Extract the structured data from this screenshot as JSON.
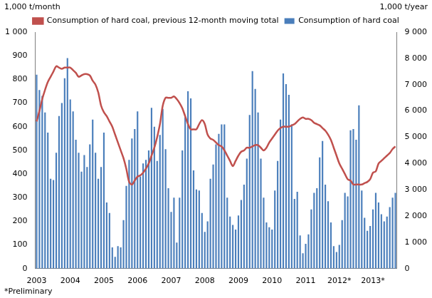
{
  "chart_data": {
    "type": "bar",
    "ylabel": "1,000 t/month",
    "y2label": "1,000 t/year",
    "annotations": [
      "*Preliminary"
    ],
    "categories": [
      "2003",
      null,
      null,
      null,
      null,
      null,
      null,
      null,
      null,
      null,
      null,
      null,
      "2004",
      null,
      null,
      null,
      null,
      null,
      null,
      null,
      null,
      null,
      null,
      null,
      "2005",
      null,
      null,
      null,
      null,
      null,
      null,
      null,
      null,
      null,
      null,
      null,
      "2006",
      null,
      null,
      null,
      null,
      null,
      null,
      null,
      null,
      null,
      null,
      null,
      "2007",
      null,
      null,
      null,
      null,
      null,
      null,
      null,
      null,
      null,
      null,
      null,
      "2008",
      null,
      null,
      null,
      null,
      null,
      null,
      null,
      null,
      null,
      null,
      null,
      "2009",
      null,
      null,
      null,
      null,
      null,
      null,
      null,
      null,
      null,
      null,
      null,
      "2010",
      null,
      null,
      null,
      null,
      null,
      null,
      null,
      null,
      null,
      null,
      null,
      "2011",
      null,
      null,
      null,
      null,
      null,
      null,
      null,
      null,
      null,
      null,
      null,
      "2012*",
      null,
      null,
      null,
      null,
      null,
      null,
      null,
      null,
      null,
      null,
      null,
      "2013*",
      null,
      null,
      null,
      null,
      null,
      null,
      null,
      null
    ],
    "series": [
      {
        "name": "Consumption of hard coal",
        "type": "bar",
        "color": "#4a7ebb",
        "values": [
          820,
          755,
          730,
          660,
          575,
          380,
          375,
          490,
          645,
          700,
          805,
          890,
          715,
          665,
          545,
          490,
          410,
          480,
          430,
          525,
          630,
          490,
          380,
          430,
          575,
          280,
          235,
          90,
          50,
          95,
          90,
          205,
          350,
          460,
          550,
          590,
          665,
          390,
          445,
          460,
          500,
          680,
          600,
          455,
          565,
          675,
          505,
          340,
          240,
          300,
          110,
          300,
          500,
          640,
          750,
          720,
          415,
          335,
          330,
          235,
          155,
          200,
          380,
          440,
          525,
          570,
          610,
          610,
          300,
          220,
          185,
          165,
          225,
          290,
          355,
          465,
          650,
          835,
          760,
          660,
          465,
          300,
          195,
          175,
          165,
          330,
          455,
          630,
          825,
          780,
          735,
          610,
          295,
          325,
          140,
          65,
          105,
          145,
          250,
          320,
          340,
          470,
          540,
          355,
          285,
          195,
          95,
          70,
          100,
          205,
          320,
          305,
          585,
          590,
          545,
          690,
          330,
          215,
          160,
          180,
          250,
          320,
          280,
          230,
          200,
          220,
          260,
          300,
          320
        ]
      },
      {
        "name": "Consumption of hard coal, previous 12-month moving total",
        "type": "line",
        "color": "#c0504d",
        "axis": "y2",
        "values": [
          5600,
          6000,
          6450,
          6800,
          7100,
          7300,
          7500,
          7700,
          7650,
          7600,
          7650,
          7650,
          7650,
          7550,
          7450,
          7300,
          7350,
          7400,
          7400,
          7350,
          7150,
          7000,
          6700,
          6200,
          5950,
          5800,
          5600,
          5400,
          5100,
          4800,
          4500,
          4200,
          3800,
          3300,
          3200,
          3350,
          3500,
          3550,
          3650,
          3800,
          4000,
          4300,
          4600,
          5000,
          5500,
          6200,
          6500,
          6500,
          6500,
          6550,
          6450,
          6300,
          6100,
          5800,
          5500,
          5300,
          5300,
          5300,
          5500,
          5650,
          5500,
          5100,
          4950,
          4900,
          4800,
          4700,
          4650,
          4500,
          4300,
          4100,
          3900,
          4100,
          4300,
          4450,
          4500,
          4600,
          4600,
          4650,
          4700,
          4700,
          4600,
          4500,
          4600,
          4800,
          4950,
          5100,
          5250,
          5350,
          5400,
          5400,
          5400,
          5450,
          5500,
          5600,
          5700,
          5750,
          5700,
          5700,
          5650,
          5550,
          5500,
          5450,
          5350,
          5250,
          5100,
          4900,
          4600,
          4300,
          4000,
          3800,
          3600,
          3400,
          3350,
          3200,
          3200,
          3200,
          3200,
          3250,
          3300,
          3400,
          3650,
          3700,
          4000,
          4100,
          4200,
          4300,
          4400,
          4550,
          4650
        ]
      }
    ],
    "ylim": [
      0,
      1000
    ],
    "yticks": [
      0,
      100,
      200,
      300,
      400,
      500,
      600,
      700,
      800,
      900,
      {
        "value": 1000,
        "label": "1 000"
      }
    ],
    "y2lim": [
      0,
      9000
    ],
    "y2ticks": [
      0,
      {
        "value": 1000,
        "label": "1 000"
      },
      {
        "value": 2000,
        "label": "2 000"
      },
      {
        "value": 3000,
        "label": "3 000"
      },
      {
        "value": 4000,
        "label": "4 000"
      },
      {
        "value": 5000,
        "label": "5 000"
      },
      {
        "value": 6000,
        "label": "6 000"
      },
      {
        "value": 7000,
        "label": "7 000"
      },
      {
        "value": 8000,
        "label": "8 000"
      },
      {
        "value": 9000,
        "label": "9 000"
      }
    ],
    "legend": "top",
    "grid": false
  }
}
